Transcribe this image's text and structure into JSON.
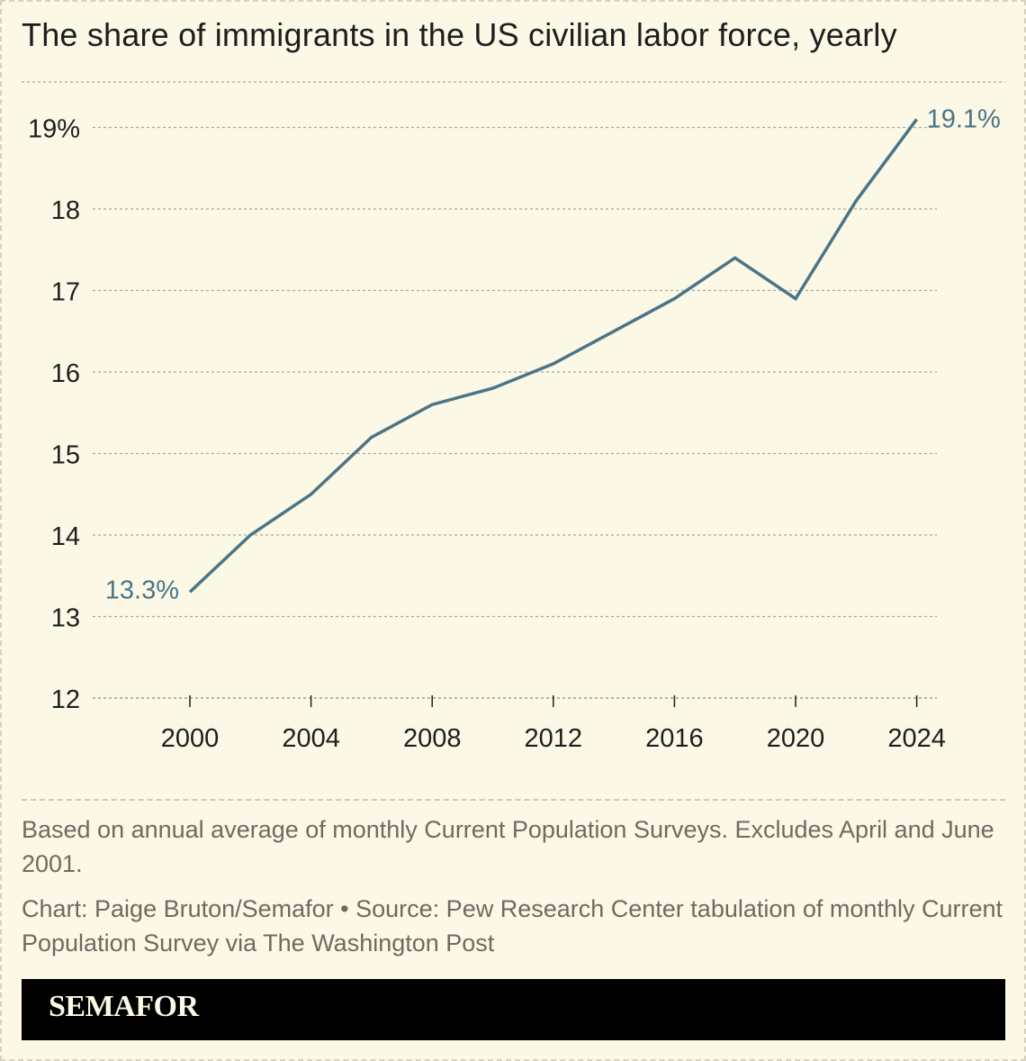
{
  "colors": {
    "background": "#fcf8e6",
    "line": "#4a7587",
    "grid": "#a9a59a",
    "text": "#1e1e1e",
    "note_text": "#6f6a61",
    "footer_bg": "#000000",
    "footer_text": "#fcf8e6"
  },
  "chart_data": {
    "type": "line",
    "title": "The share of immigrants in the US civilian labor force, yearly",
    "xlabel": "",
    "ylabel": "",
    "x_ticks": [
      2000,
      2004,
      2008,
      2012,
      2016,
      2020,
      2024
    ],
    "y_ticks": [
      {
        "value": 12,
        "label": "12"
      },
      {
        "value": 13,
        "label": "13"
      },
      {
        "value": 14,
        "label": "14"
      },
      {
        "value": 15,
        "label": "15"
      },
      {
        "value": 16,
        "label": "16"
      },
      {
        "value": 17,
        "label": "17"
      },
      {
        "value": 18,
        "label": "18"
      },
      {
        "value": 19,
        "label": "19%"
      }
    ],
    "ylim": [
      12,
      19.6
    ],
    "grid": true,
    "series": [
      {
        "color": "#4a7587",
        "points": [
          {
            "x": 2000,
            "y": 13.3
          },
          {
            "x": 2002,
            "y": 14.0
          },
          {
            "x": 2004,
            "y": 14.5
          },
          {
            "x": 2006,
            "y": 15.2
          },
          {
            "x": 2008,
            "y": 15.6
          },
          {
            "x": 2010,
            "y": 15.8
          },
          {
            "x": 2012,
            "y": 16.1
          },
          {
            "x": 2014,
            "y": 16.5
          },
          {
            "x": 2016,
            "y": 16.9
          },
          {
            "x": 2018,
            "y": 17.4
          },
          {
            "x": 2020,
            "y": 16.9
          },
          {
            "x": 2022,
            "y": 18.1
          },
          {
            "x": 2024,
            "y": 19.1
          }
        ]
      }
    ],
    "annotations": [
      {
        "x": 2000,
        "y": 13.3,
        "text": "13.3%",
        "side": "left"
      },
      {
        "x": 2024,
        "y": 19.1,
        "text": "19.1%",
        "side": "right"
      }
    ]
  },
  "notes": {
    "methodology": "Based on annual average of monthly Current Population Surveys. Excludes April and June 2001.",
    "credit": "Chart: Paige Bruton/Semafor • Source: Pew Research Center tabulation of monthly Current Population Survey via The Washington Post"
  },
  "footer": {
    "logo": "SEMAFOR"
  }
}
